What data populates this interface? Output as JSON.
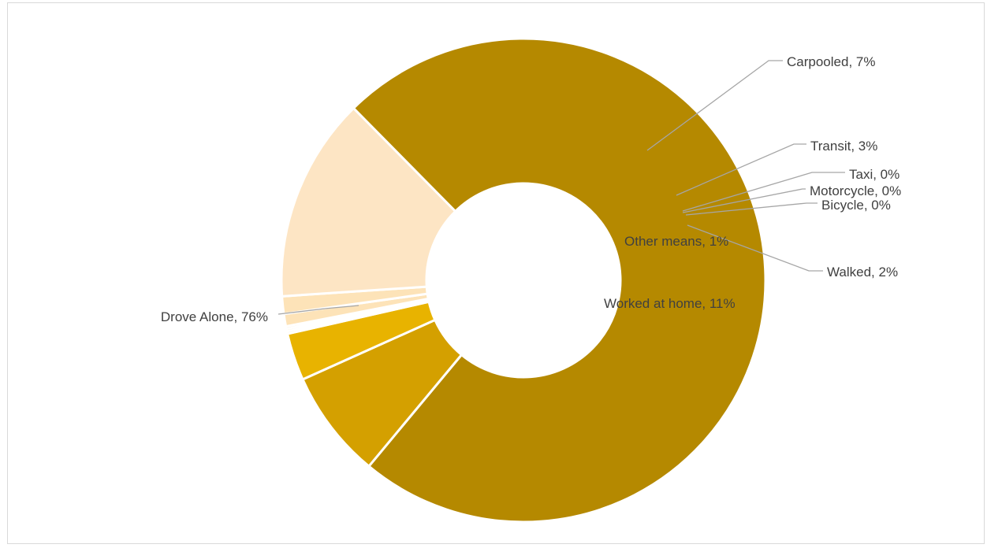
{
  "chart_data": {
    "type": "pie",
    "variant": "doughnut",
    "title": "",
    "categories": [
      "Drove Alone",
      "Carpooled",
      "Transit",
      "Taxi",
      "Motorcycle",
      "Bicycle",
      "Walked",
      "Other means",
      "Worked at home"
    ],
    "values": [
      76,
      7,
      3,
      0,
      0,
      0,
      2,
      1,
      11
    ],
    "labels": [
      "Drove Alone, 76%",
      "Carpooled, 7%",
      "Transit, 3%",
      "Taxi, 0%",
      "Motorcycle, 0%",
      "Bicycle, 0%",
      "Walked, 2%",
      "Other means, 1%",
      "Worked at home, 11%"
    ],
    "colors": [
      "#b58900",
      "#d4a000",
      "#e8b300",
      "#f0c850",
      "#f4d27a",
      "#f8dda0",
      "#fde3b8",
      "#fde3b8",
      "#fde5c4"
    ],
    "legend": "none"
  }
}
